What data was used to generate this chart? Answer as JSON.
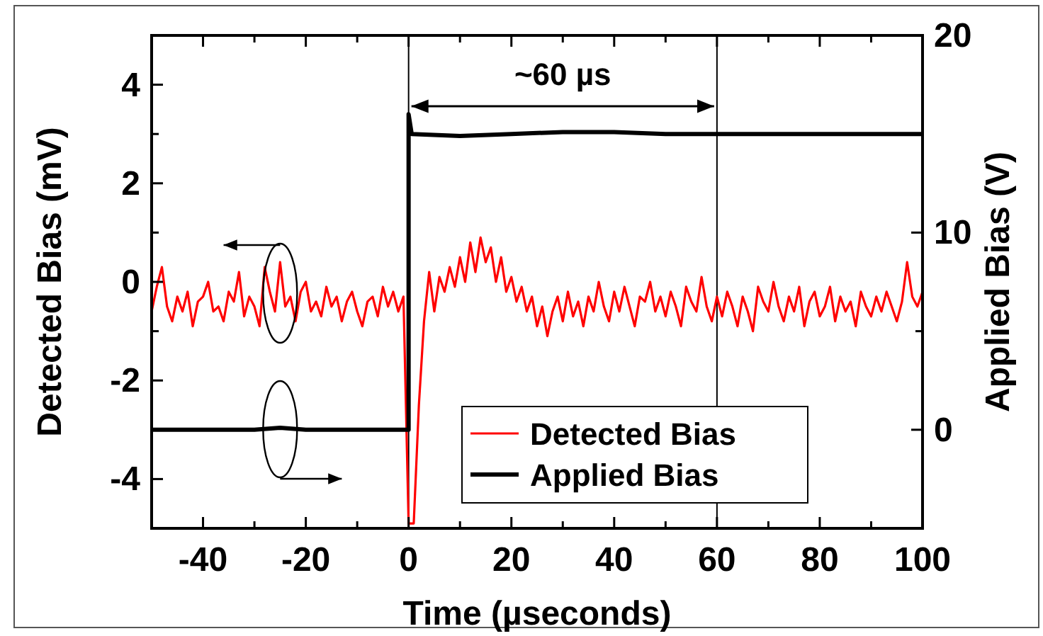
{
  "chart_data": {
    "type": "line",
    "xlabel": "Time (µseconds)",
    "ylabel": "Detected Bias (mV)",
    "y2label": "Applied Bias (V)",
    "xlim": [
      -50,
      100
    ],
    "xticks": [
      {
        "value": -50,
        "label": null
      },
      -40,
      {
        "value": -30,
        "label": null
      },
      -20,
      {
        "value": -10,
        "label": null
      },
      0,
      {
        "value": 10,
        "label": null
      },
      20,
      {
        "value": 30,
        "label": null
      },
      40,
      {
        "value": 50,
        "label": null
      },
      60,
      {
        "value": 70,
        "label": null
      },
      80,
      {
        "value": 90,
        "label": null
      },
      100
    ],
    "ylim": [
      -5,
      5
    ],
    "yticks": [
      {
        "value": -3,
        "label": null
      },
      -4,
      -2,
      {
        "value": -1,
        "label": null
      },
      0,
      {
        "value": 1,
        "label": null
      },
      2,
      {
        "value": 3,
        "label": null
      },
      4
    ],
    "y2lim": [
      -5,
      20
    ],
    "y2ticks": [
      0,
      {
        "value": 5,
        "label": null
      },
      10,
      {
        "value": 15,
        "label": null
      },
      20
    ],
    "legend": "bottom",
    "grid": false,
    "line_style": "solid",
    "ref_lines": [
      {
        "axis": "x",
        "value": 0,
        "label": null,
        "color": "#000000"
      },
      {
        "axis": "x",
        "value": 60,
        "label": null,
        "color": "#000000"
      }
    ],
    "annotations": [
      "~60 µs"
    ],
    "series": [
      {
        "name": "Detected Bias",
        "color": "#ff0000",
        "x": [
          -50,
          -49,
          -48,
          -47,
          -46,
          -45,
          -44,
          -43,
          -42,
          -41,
          -40,
          -39,
          -38,
          -37,
          -36,
          -35,
          -34,
          -33,
          -32,
          -31,
          -30,
          -29,
          -28,
          -27,
          -26,
          -25,
          -24,
          -23,
          -22,
          -21,
          -20,
          -19,
          -18,
          -17,
          -16,
          -15,
          -14,
          -13,
          -12,
          -11,
          -10,
          -9,
          -8,
          -7,
          -6,
          -5,
          -4,
          -3,
          -2,
          -1,
          0,
          1,
          2,
          3,
          4,
          5,
          6,
          7,
          8,
          9,
          10,
          11,
          12,
          13,
          14,
          15,
          16,
          17,
          18,
          19,
          20,
          21,
          22,
          23,
          24,
          25,
          26,
          27,
          28,
          29,
          30,
          31,
          32,
          33,
          34,
          35,
          36,
          37,
          38,
          39,
          40,
          41,
          42,
          43,
          44,
          45,
          46,
          47,
          48,
          49,
          50,
          51,
          52,
          53,
          54,
          55,
          56,
          57,
          58,
          59,
          60,
          61,
          62,
          63,
          64,
          65,
          66,
          67,
          68,
          69,
          70,
          71,
          72,
          73,
          74,
          75,
          76,
          77,
          78,
          79,
          80,
          81,
          82,
          83,
          84,
          85,
          86,
          87,
          88,
          89,
          90,
          91,
          92,
          93,
          94,
          95,
          96,
          97,
          98,
          99,
          100
        ],
        "values": [
          -0.6,
          -0.1,
          0.3,
          -0.5,
          -0.8,
          -0.3,
          -0.6,
          -0.2,
          -0.9,
          -0.4,
          -0.3,
          0.0,
          -0.6,
          -0.5,
          -0.8,
          -0.2,
          -0.4,
          0.2,
          -0.7,
          -0.3,
          -0.5,
          -0.9,
          0.3,
          -0.2,
          -0.6,
          0.4,
          -0.5,
          -0.3,
          -0.8,
          -0.2,
          0.0,
          -0.6,
          -0.4,
          -0.7,
          -0.1,
          -0.5,
          -0.3,
          -0.8,
          -0.4,
          -0.2,
          -0.6,
          -0.9,
          -0.4,
          -0.3,
          -0.7,
          -0.1,
          -0.5,
          -0.2,
          -0.6,
          -0.3,
          -4.9,
          -4.9,
          -2.5,
          -0.8,
          0.2,
          -0.6,
          0.1,
          -0.2,
          0.3,
          -0.1,
          0.5,
          0.0,
          0.8,
          0.2,
          0.9,
          0.4,
          0.7,
          0.0,
          0.5,
          -0.2,
          0.1,
          -0.4,
          -0.1,
          -0.6,
          -0.3,
          -0.9,
          -0.5,
          -1.1,
          -0.6,
          -0.3,
          -0.8,
          -0.2,
          -0.7,
          -0.4,
          -0.9,
          -0.3,
          -0.6,
          0.0,
          -0.5,
          -0.8,
          -0.2,
          -0.6,
          -0.1,
          -0.5,
          -0.9,
          -0.3,
          -0.4,
          0.0,
          -0.6,
          -0.3,
          -0.7,
          -0.2,
          -0.5,
          -0.9,
          -0.1,
          -0.4,
          -0.6,
          0.1,
          -0.5,
          -0.8,
          -0.3,
          -0.7,
          -0.2,
          -0.5,
          -0.9,
          -0.3,
          -0.6,
          -1.0,
          -0.1,
          -0.4,
          -0.6,
          0.0,
          -0.5,
          -0.8,
          -0.3,
          -0.6,
          -0.1,
          -0.9,
          -0.4,
          -0.2,
          -0.7,
          -0.5,
          -0.1,
          -0.8,
          -0.3,
          -0.6,
          -0.4,
          -0.9,
          -0.2,
          -0.5,
          -0.7,
          -0.3,
          -0.6,
          -0.2,
          -0.5,
          -0.8,
          -0.4,
          0.4,
          -0.3,
          -0.5,
          -0.2
        ]
      },
      {
        "name": "Applied Bias",
        "color": "#000000",
        "axis": "y2",
        "x": [
          -50,
          -40,
          -30,
          -25,
          -20,
          -10,
          -1,
          0,
          0,
          0.6,
          10,
          20,
          30,
          40,
          50,
          60,
          70,
          80,
          90,
          100
        ],
        "values": [
          0,
          0,
          0,
          0.1,
          0,
          0,
          0,
          0,
          16,
          15,
          14.9,
          15,
          15.1,
          15.1,
          15,
          15,
          15,
          15,
          15,
          15
        ]
      }
    ]
  }
}
